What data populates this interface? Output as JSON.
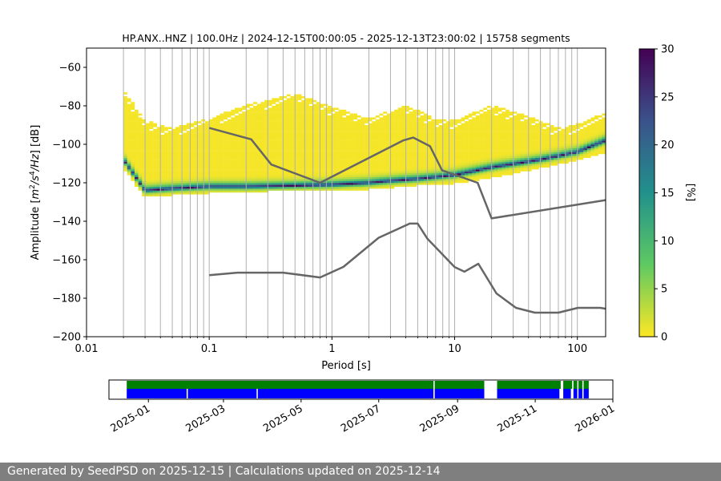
{
  "title": "HP.ANX..HNZ | 100.0Hz | 2024-12-15T00:00:05 - 2025-12-13T23:00:02 | 15758 segments",
  "footer": "Generated by SeedPSD on 2025-12-15 | Calculations updated on 2025-12-14",
  "colors": {
    "noise_model_line": "#666666",
    "colormap": [
      "#fde725",
      "#5ec962",
      "#21918c",
      "#3b528b",
      "#440154"
    ],
    "availability_green": "#008000",
    "availability_blue": "#0000ff",
    "footer_bg": "#7f7f7f"
  },
  "chart_data": [
    {
      "type": "heatmap",
      "title": "HP.ANX..HNZ | 100.0Hz | 2024-12-15T00:00:05 - 2025-12-13T23:00:02 | 15758 segments",
      "xlabel": "Period [s]",
      "ylabel": "Amplitude [m2/s4/Hz] [dB]",
      "x_scale": "log",
      "xlim": [
        0.01,
        170
      ],
      "ylim": [
        -200,
        -50
      ],
      "x_ticks": [
        0.01,
        0.1,
        1,
        10,
        100
      ],
      "x_tick_labels": [
        "0.01",
        "0.1",
        "1",
        "10",
        "100"
      ],
      "y_ticks": [
        -200,
        -180,
        -160,
        -140,
        -120,
        -100,
        -80,
        -60
      ],
      "y_tick_labels": [
        "−200",
        "−180",
        "−160",
        "−140",
        "−120",
        "−100",
        "−80",
        "−60"
      ],
      "grid": "vertical at periods",
      "period_bins": [
        0.02,
        0.03,
        0.04,
        0.05,
        0.06,
        0.07,
        0.08,
        0.09,
        0.1,
        0.2,
        0.3,
        0.4,
        0.5,
        0.6,
        0.7,
        0.8,
        0.9,
        1,
        2,
        3,
        4,
        5,
        6,
        7,
        8,
        9,
        10,
        20,
        30,
        40,
        50,
        60,
        70,
        80,
        90,
        100
      ],
      "colorbar": {
        "label": "[%]",
        "min": 0,
        "max": 30,
        "ticks": [
          0,
          5,
          10,
          15,
          20,
          25,
          30
        ],
        "colormap": "viridis_r"
      },
      "psd_mode": {
        "period": [
          0.02,
          0.03,
          0.05,
          0.1,
          0.2,
          0.5,
          1,
          2,
          3,
          5,
          10,
          20,
          50,
          100,
          170
        ],
        "db": [
          -108,
          -124,
          -123,
          -122,
          -122,
          -121.5,
          -121,
          -120,
          -119,
          -118,
          -116,
          -112,
          -108,
          -104,
          -98
        ]
      },
      "psd_upper_envelope": {
        "period": [
          0.02,
          0.03,
          0.05,
          0.1,
          0.2,
          0.5,
          1,
          2,
          4,
          7,
          10,
          20,
          40,
          70,
          100,
          170
        ],
        "db": [
          -72,
          -88,
          -92,
          -87,
          -80,
          -74,
          -81,
          -87,
          -80,
          -87,
          -88,
          -80,
          -86,
          -92,
          -90,
          -84
        ]
      },
      "psd_lower_envelope": {
        "period": [
          0.02,
          0.03,
          0.05,
          0.1,
          0.3,
          1,
          2,
          5,
          10,
          20,
          50,
          100,
          170
        ],
        "db": [
          -112,
          -127,
          -126,
          -125,
          -124,
          -124,
          -123,
          -121,
          -120,
          -117,
          -112,
          -108,
          -104
        ]
      },
      "series": [
        {
          "name": "",
          "x": [
            0.1,
            0.22,
            0.32,
            0.8,
            3.8,
            4.6,
            6.3,
            7.9,
            15.4,
            20,
            170
          ],
          "y": [
            -91.5,
            -97.4,
            -110.5,
            -120,
            -98,
            -96.5,
            -101,
            -113.5,
            -120,
            -138.5,
            -129
          ]
        },
        {
          "name": "",
          "x": [
            0.1,
            0.17,
            0.4,
            0.8,
            1.24,
            2.4,
            4.3,
            5,
            6.0,
            10,
            12,
            15.6,
            21.9,
            31.6,
            45,
            70,
            101,
            154,
            170
          ],
          "y": [
            -168,
            -166.7,
            -166.7,
            -169.2,
            -163.7,
            -148.6,
            -141.2,
            -141.2,
            -149.1,
            -163.8,
            -166.2,
            -162.1,
            -177.5,
            -185,
            -187.5,
            -187.5,
            -185,
            -185,
            -185.5
          ]
        }
      ]
    },
    {
      "type": "availability",
      "x_ticks": [
        "2025-01",
        "2025-03",
        "2025-05",
        "2025-07",
        "2025-09",
        "2025-11",
        "2026-01"
      ],
      "xlim": [
        "2024-12-01",
        "2026-01-01"
      ],
      "series": [
        {
          "name": "",
          "color": "green",
          "intervals": [
            [
              "2024-12-15",
              "2025-08-13"
            ],
            [
              "2025-08-14",
              "2025-09-22"
            ],
            [
              "2025-10-02",
              "2025-11-21"
            ],
            [
              "2025-11-23",
              "2025-11-30"
            ],
            [
              "2025-12-01",
              "2025-12-04"
            ],
            [
              "2025-12-05",
              "2025-12-08"
            ],
            [
              "2025-12-09",
              "2025-12-13"
            ]
          ]
        },
        {
          "name": "",
          "color": "blue",
          "intervals": [
            [
              "2024-12-15",
              "2025-01-31"
            ],
            [
              "2025-02-01",
              "2025-03-27"
            ],
            [
              "2025-03-28",
              "2025-08-13"
            ],
            [
              "2025-08-14",
              "2025-09-22"
            ],
            [
              "2025-10-02",
              "2025-11-20"
            ],
            [
              "2025-11-23",
              "2025-11-29"
            ],
            [
              "2025-12-01",
              "2025-12-04"
            ],
            [
              "2025-12-05",
              "2025-12-08"
            ],
            [
              "2025-12-09",
              "2025-12-13"
            ]
          ]
        }
      ]
    }
  ]
}
